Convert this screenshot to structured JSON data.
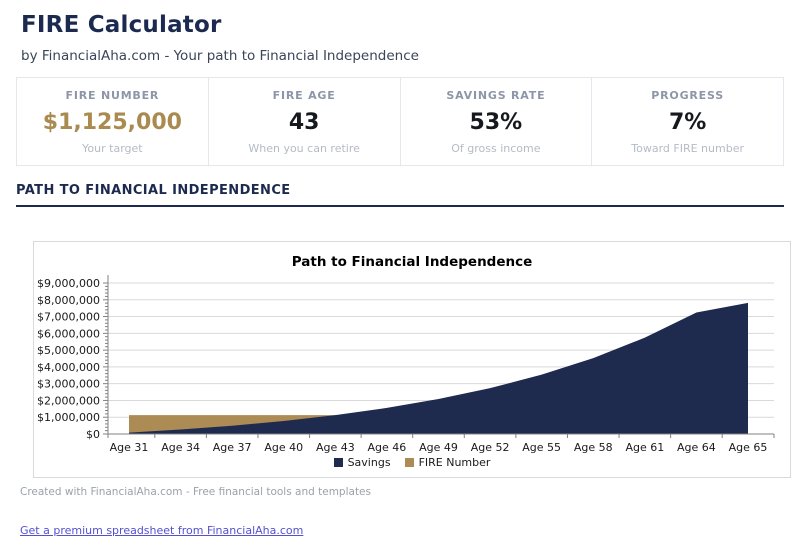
{
  "header": {
    "title": "FIRE Calculator",
    "subtitle": "by FinancialAha.com - Your path to Financial Independence"
  },
  "stats": [
    {
      "label": "FIRE NUMBER",
      "value": "$1,125,000",
      "sublabel": "Your target"
    },
    {
      "label": "FIRE AGE",
      "value": "43",
      "sublabel": "When you can retire"
    },
    {
      "label": "SAVINGS RATE",
      "value": "53%",
      "sublabel": "Of gross income"
    },
    {
      "label": "PROGRESS",
      "value": "7%",
      "sublabel": "Toward FIRE number"
    }
  ],
  "section": {
    "title": "PATH TO FINANCIAL INDEPENDENCE"
  },
  "chart_data": {
    "type": "area",
    "title": "Path to Financial Independence",
    "categories": [
      "Age 31",
      "Age 34",
      "Age 37",
      "Age 40",
      "Age 43",
      "Age 46",
      "Age 49",
      "Age 52",
      "Age 55",
      "Age 58",
      "Age 61",
      "Age 64",
      "Age 65"
    ],
    "series": [
      {
        "name": "Savings",
        "color": "#1e2b4e",
        "values": [
          79000,
          265000,
          494000,
          777000,
          1125000,
          1554000,
          2083000,
          2734000,
          3536000,
          4524000,
          5741000,
          7240000,
          7814000
        ]
      },
      {
        "name": "FIRE Number",
        "color": "#ac8b55",
        "values": [
          1125000,
          1125000,
          1125000,
          1125000,
          1125000,
          1125000,
          1125000,
          1125000,
          1125000,
          1125000,
          1125000,
          1125000,
          1125000
        ]
      }
    ],
    "xlabel": "",
    "ylabel": "",
    "ylim": [
      0,
      9000000
    ],
    "y_tick_step": 1000000,
    "y_minor_tick_step": 200000,
    "y_tick_prefix": "$",
    "grid": true,
    "legend_position": "bottom"
  },
  "footer": {
    "credit": "Created with FinancialAha.com - Free financial tools and templates",
    "link_label": "Get a premium spreadsheet from FinancialAha.com"
  },
  "colors": {
    "navy": "#1e2b4e",
    "gold": "#a98b50",
    "heading": "#1b2a4e",
    "gridline": "#d9d9d9",
    "axis": "#808080",
    "link": "#5450d2"
  }
}
